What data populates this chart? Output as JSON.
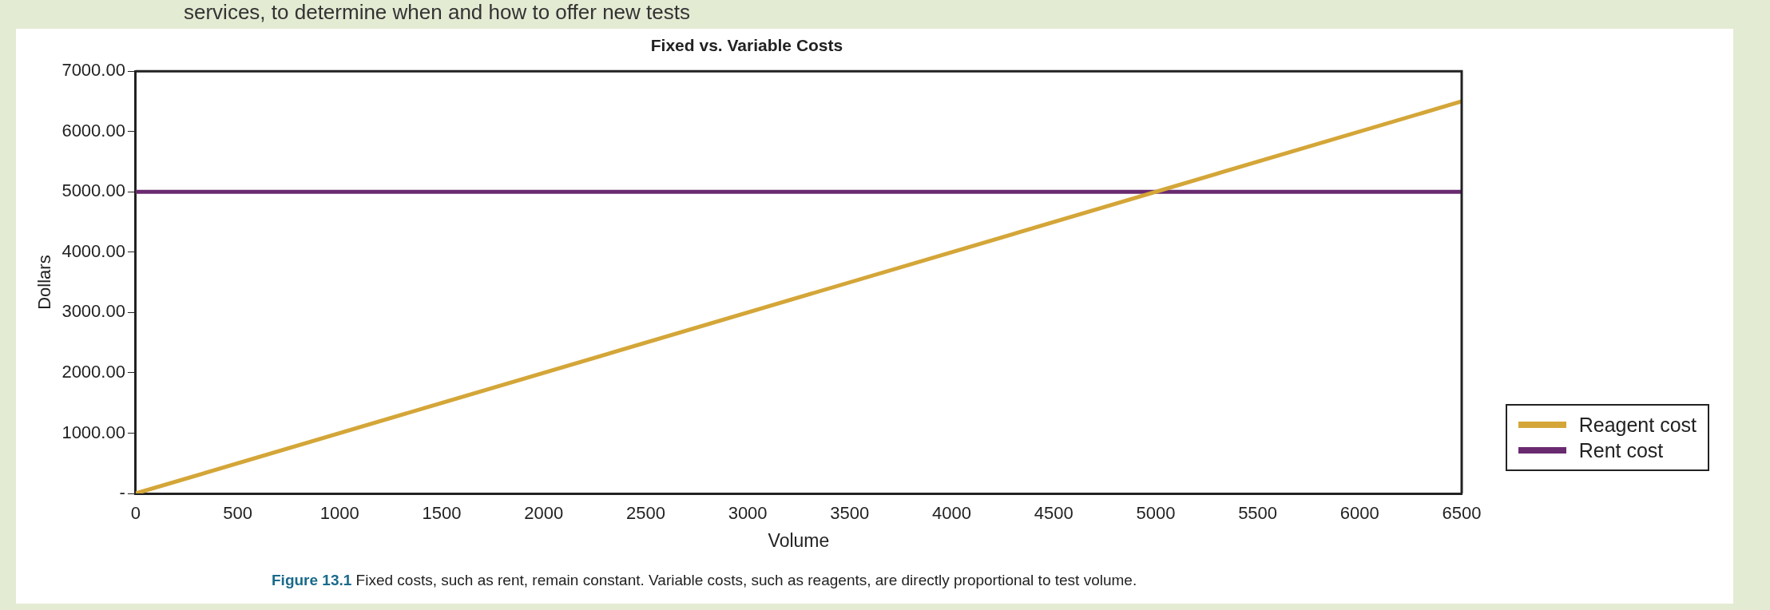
{
  "chart_data": {
    "type": "line",
    "title": "Fixed vs. Variable Costs",
    "xlabel": "Volume",
    "ylabel": "Dollars",
    "annotations": [
      "services, to determine when and how to offer new tests",
      "Figure 13.1",
      "Fixed costs, such as rent, remain constant. Variable costs, such as reagents, are directly proportional to test volume."
    ],
    "series": [
      {
        "name": "Reagent cost",
        "color": "#d4a638",
        "values": [
          0,
          6500
        ]
      },
      {
        "name": "Rent cost",
        "color": "#6a2a70",
        "values": [
          5000,
          5000
        ]
      }
    ],
    "x": [
      0,
      6500
    ],
    "xlim": [
      0,
      6500
    ],
    "xticks": [
      0,
      500,
      1000,
      1500,
      2000,
      2500,
      3000,
      3500,
      4000,
      4500,
      5000,
      5500,
      6000,
      6500
    ],
    "ylim": [
      0,
      7000
    ],
    "yticks": [
      {
        "value": 0,
        "label": "-"
      },
      {
        "value": 1000,
        "label": "1000.00"
      },
      {
        "value": 2000,
        "label": "2000.00"
      },
      {
        "value": 3000,
        "label": "3000.00"
      },
      {
        "value": 4000,
        "label": "4000.00"
      },
      {
        "value": 5000,
        "label": "5000.00"
      },
      {
        "value": 6000,
        "label": "6000.00"
      },
      {
        "value": 7000,
        "label": "7000.00"
      }
    ],
    "grid": false,
    "legend": "right",
    "marker": "none",
    "line_style": "solid"
  }
}
